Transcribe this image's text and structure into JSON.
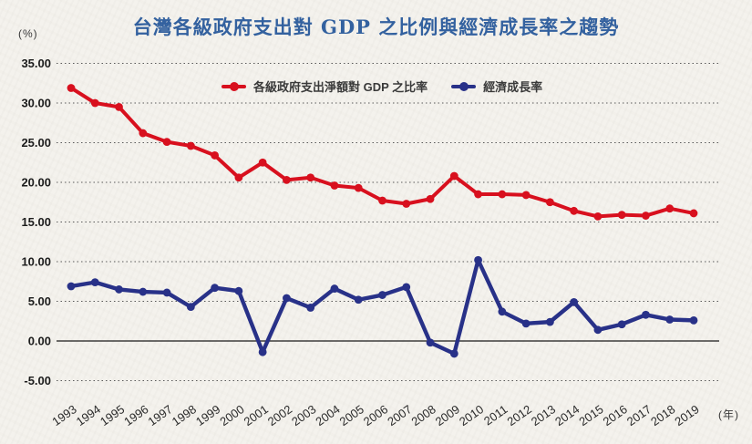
{
  "page": {
    "title": "台灣各級政府支出對 GDP 之比例與經濟成長率之趨勢"
  },
  "chart_data": {
    "type": "line",
    "title": "台灣各級政府支出對 GDP 之比例與經濟成長率之趨勢",
    "y_unit_label": "(%)",
    "x_unit_label": "(年)",
    "categories": [
      "1993",
      "1994",
      "1995",
      "1996",
      "1997",
      "1998",
      "1999",
      "2000",
      "2001",
      "2002",
      "2003",
      "2004",
      "2005",
      "2006",
      "2007",
      "2008",
      "2009",
      "2010",
      "2011",
      "2012",
      "2013",
      "2014",
      "2015",
      "2016",
      "2017",
      "2018",
      "2019"
    ],
    "series": [
      {
        "name": "各級政府支出淨額對 GDP 之比率",
        "color": "#d8101e",
        "values": [
          31.9,
          30.0,
          29.5,
          26.2,
          25.1,
          24.6,
          23.4,
          20.6,
          22.5,
          20.3,
          20.6,
          19.6,
          19.3,
          17.7,
          17.3,
          17.9,
          20.8,
          18.5,
          18.5,
          18.4,
          17.5,
          16.4,
          15.7,
          15.9,
          15.8,
          16.7,
          16.1
        ]
      },
      {
        "name": "經濟成長率",
        "color": "#283188",
        "values": [
          6.9,
          7.4,
          6.5,
          6.2,
          6.1,
          4.3,
          6.7,
          6.3,
          -1.4,
          5.4,
          4.2,
          6.6,
          5.2,
          5.8,
          6.8,
          -0.2,
          -1.6,
          10.2,
          3.7,
          2.2,
          2.4,
          4.9,
          1.4,
          2.1,
          3.3,
          2.7,
          2.6
        ]
      }
    ],
    "ylim": [
      -5,
      35
    ],
    "ytick_step": 5,
    "ytick_labels": [
      "35.00",
      "30.00",
      "25.00",
      "20.00",
      "15.00",
      "10.00",
      "5.00",
      "0.00",
      "-5.00"
    ],
    "grid": "horizontal-dotted",
    "zero_line": true,
    "legend_position": "top-center",
    "title_color": "#33619f"
  }
}
